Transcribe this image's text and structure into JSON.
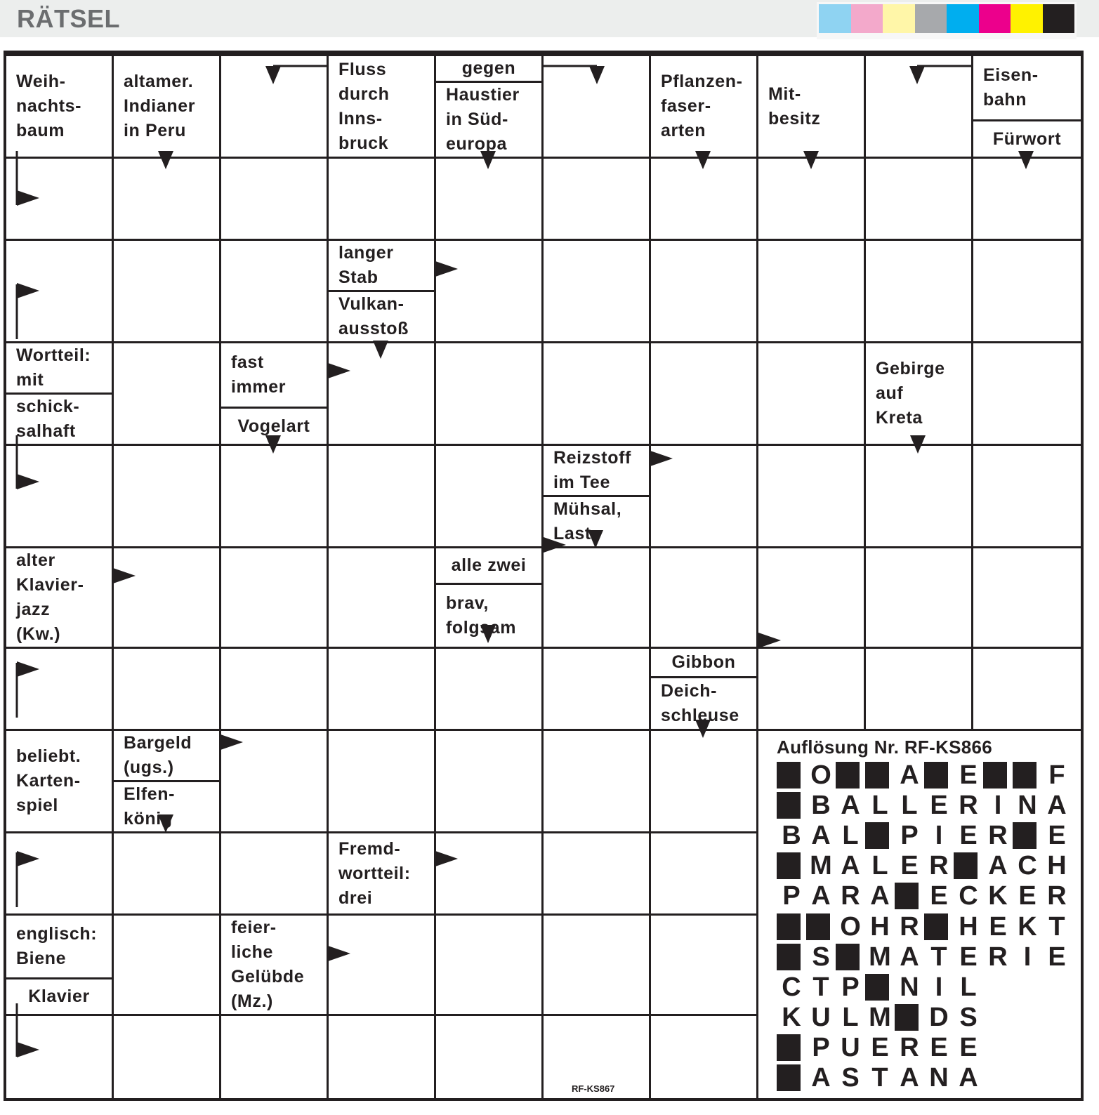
{
  "header": {
    "title": "RÄTSEL",
    "color_swatches": [
      "#8fd3f2",
      "#f3a9cb",
      "#fff6a8",
      "#a7a9ac",
      "#00aeef",
      "#ec008c",
      "#fff200",
      "#231f20"
    ]
  },
  "clues": [
    {
      "row": 0,
      "col": 0,
      "parts": [
        "Weih-\nnachts-\nbaum"
      ]
    },
    {
      "row": 0,
      "col": 1,
      "parts": [
        "altamer.\nIndianer\nin Peru"
      ]
    },
    {
      "row": 0,
      "col": 3,
      "parts": [
        "Fluss\ndurch\nInns-\nbruck"
      ]
    },
    {
      "row": 0,
      "col": 4,
      "parts": [
        "gegen",
        "Haustier\nin Süd-\neuropa"
      ],
      "small_first": true
    },
    {
      "row": 0,
      "col": 6,
      "parts": [
        "Pflanzen-\nfaser-\narten"
      ]
    },
    {
      "row": 0,
      "col": 7,
      "parts": [
        "Mit-\nbesitz"
      ]
    },
    {
      "row": 0,
      "col": 9,
      "parts": [
        "Eisen-\nbahn",
        "Fürwort"
      ],
      "small_last": true
    },
    {
      "row": 2,
      "col": 3,
      "parts": [
        "langer\nStab",
        "Vulkan-\nausstoß"
      ]
    },
    {
      "row": 3,
      "col": 0,
      "parts": [
        "Wortteil:\nmit",
        "schick-\nsalhaft"
      ]
    },
    {
      "row": 3,
      "col": 2,
      "parts": [
        "fast\nimmer",
        "Vogelart"
      ],
      "small_last": true
    },
    {
      "row": 3,
      "col": 8,
      "parts": [
        "Gebirge\nauf\nKreta"
      ]
    },
    {
      "row": 4,
      "col": 5,
      "parts": [
        "Reizstoff\nim Tee",
        "Mühsal,\nLast"
      ]
    },
    {
      "row": 5,
      "col": 0,
      "parts": [
        "alter\nKlavier-\njazz\n(Kw.)"
      ]
    },
    {
      "row": 5,
      "col": 4,
      "parts": [
        "alle zwei",
        "brav,\nfolgsam"
      ],
      "small_first": true
    },
    {
      "row": 6,
      "col": 6,
      "parts": [
        "Gibbon",
        "Deich-\nschleuse"
      ],
      "small_first": true
    },
    {
      "row": 7,
      "col": 0,
      "parts": [
        "beliebt.\nKarten-\nspiel"
      ]
    },
    {
      "row": 7,
      "col": 1,
      "parts": [
        "Bargeld\n(ugs.)",
        "Elfen-\nkönig"
      ]
    },
    {
      "row": 8,
      "col": 3,
      "parts": [
        "Fremd-\nwortteil:\ndrei"
      ]
    },
    {
      "row": 9,
      "col": 0,
      "parts": [
        "englisch:\nBiene",
        "Klavier"
      ],
      "small_last": true
    },
    {
      "row": 9,
      "col": 2,
      "parts": [
        "feier-\nliche\nGelübde\n(Mz.)"
      ]
    }
  ],
  "solution": {
    "title": "Auflösung Nr. RF-KS866",
    "rows": [
      "#O##A#E##F",
      "#BALLERINA",
      "BAL#PIER#E",
      "#MALER#ACH",
      "PARA#ECKER",
      "##OHR#HEKT",
      "#S#MATERIE",
      "CTP#NIL",
      "KULM#DS",
      "#PUEREE",
      "#ASTANA"
    ]
  },
  "puzzle_code": "RF-KS867"
}
